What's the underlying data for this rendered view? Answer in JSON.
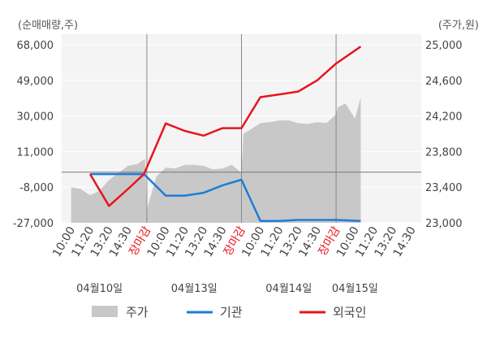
{
  "chart_data": {
    "type": "line",
    "left_axis": {
      "unit": "(순매매량,주)",
      "ticks": [
        "68,000",
        "49,000",
        "30,000",
        "11,000",
        "-8,000",
        "-27,000"
      ],
      "values": [
        68000,
        49000,
        30000,
        11000,
        -8000,
        -27000
      ],
      "range": [
        -27000,
        68000
      ]
    },
    "right_axis": {
      "unit": "(주가,원)",
      "ticks": [
        "25,000",
        "24,600",
        "24,200",
        "23,800",
        "23,400",
        "23,000"
      ],
      "values": [
        25000,
        24600,
        24200,
        23800,
        23400,
        23000
      ],
      "range": [
        23000,
        25000
      ]
    },
    "x_tick_labels": [
      "10:00",
      "11:20",
      "13:20",
      "14:30",
      "장마감",
      "10:00",
      "11:20",
      "13:20",
      "14:30",
      "장마감",
      "10:00",
      "11:20",
      "13:20",
      "14:30",
      "장마감",
      "10:00",
      "11:20",
      "13:20",
      "14:30"
    ],
    "x_tick_is_close": [
      false,
      false,
      false,
      false,
      true,
      false,
      false,
      false,
      false,
      true,
      false,
      false,
      false,
      false,
      true,
      false,
      false,
      false,
      false
    ],
    "dates": [
      "04월10일",
      "04월13일",
      "04월14일",
      "04월15일"
    ],
    "series": [
      {
        "name": "주가",
        "type": "area",
        "axis": "right",
        "color": "#c8c8c8",
        "x": [
          0,
          0.5,
          1,
          1.5,
          2,
          2.5,
          3,
          3.5,
          3.9,
          4.0,
          4.5,
          5,
          5.5,
          6,
          6.5,
          7,
          7.5,
          8,
          8.5,
          9.0,
          9.1,
          9.5,
          10,
          10.5,
          11,
          11.5,
          12,
          12.5,
          13,
          13.5,
          14.0,
          14.1,
          14.5,
          15.0,
          15.3
        ],
        "values": [
          23400,
          23380,
          23310,
          23360,
          23480,
          23560,
          23640,
          23660,
          23720,
          23150,
          23520,
          23620,
          23610,
          23650,
          23650,
          23640,
          23600,
          23610,
          23650,
          23560,
          24000,
          24050,
          24120,
          24130,
          24150,
          24150,
          24120,
          24110,
          24130,
          24120,
          24220,
          24300,
          24340,
          24170,
          24410
        ]
      },
      {
        "name": "기관",
        "type": "line",
        "axis": "left",
        "color": "#1c7ed6",
        "x": [
          1,
          2,
          3,
          3.85,
          5,
          6,
          7,
          8,
          9,
          10,
          11,
          12,
          13,
          14,
          15.3
        ],
        "values": [
          -1000,
          -1000,
          -1000,
          -1000,
          -12500,
          -12500,
          -11000,
          -7000,
          -4000,
          -26000,
          -26000,
          -25500,
          -25500,
          -25500,
          -26000
        ]
      },
      {
        "name": "외국인",
        "type": "line",
        "axis": "left",
        "color": "#e8141c",
        "x": [
          1,
          2,
          3,
          3.85,
          5,
          6,
          7,
          8,
          9,
          10,
          11,
          12,
          13,
          14,
          15.3
        ],
        "values": [
          -1000,
          -18000,
          -9000,
          -1000,
          26000,
          22000,
          19500,
          23500,
          23500,
          40000,
          41500,
          43000,
          49000,
          58000,
          67000
        ]
      }
    ],
    "legend": [
      "주가",
      "기관",
      "외국인"
    ],
    "grid": "horizontal",
    "legend_position": "bottom"
  }
}
